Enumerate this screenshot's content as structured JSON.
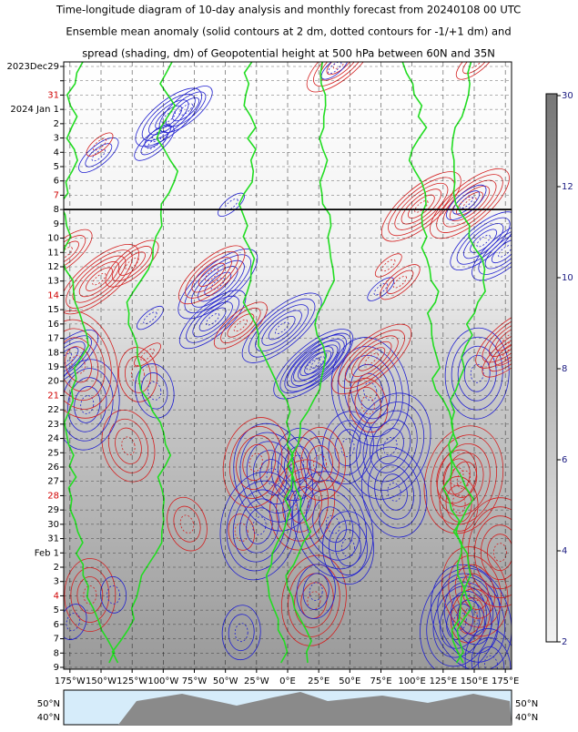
{
  "chart_data": {
    "type": "time-longitude",
    "title": [
      "Time-longitude diagram of 10-day analysis and monthly forecast from 20240108 00 UTC",
      "Ensemble mean anomaly (solid contours at 2 dm, dotted contours for -1/+1 dm) and",
      "spread (shading, dm) of Geopotential height at 500 hPa between 60N and 35N"
    ],
    "categories": [
      "2023Dec29",
      null,
      "31",
      "2024 Jan 1",
      "2",
      "3",
      "4",
      "5",
      "6",
      "7",
      "8",
      "9",
      "10",
      "11",
      "12",
      "13",
      "14",
      "15",
      "16",
      "17",
      "18",
      "19",
      "20",
      "21",
      "22",
      "23",
      "24",
      "25",
      "26",
      "27",
      "28",
      "29",
      "30",
      "31",
      "Feb 1",
      "2",
      "3",
      "4",
      "5",
      "6",
      "7",
      "8",
      "9"
    ],
    "highlight": [
      2,
      9,
      16,
      23,
      30,
      37
    ],
    "highlight_color": "#d00000",
    "divider_index": 10,
    "xlim": [
      -180,
      180
    ],
    "xticks": [
      {
        "value": -175,
        "label": "175°W"
      },
      {
        "value": -150,
        "label": "150°W"
      },
      {
        "value": -125,
        "label": "125°W"
      },
      {
        "value": -100,
        "label": "100°W"
      },
      {
        "value": -75,
        "label": "75°W"
      },
      {
        "value": -50,
        "label": "50°W"
      },
      {
        "value": -25,
        "label": "25°W"
      },
      {
        "value": 0,
        "label": "0°E"
      },
      {
        "value": 25,
        "label": "25°E"
      },
      {
        "value": 50,
        "label": "50°E"
      },
      {
        "value": 75,
        "label": "75°E"
      },
      {
        "value": 100,
        "label": "100°E"
      },
      {
        "value": 125,
        "label": "125°E"
      },
      {
        "value": 150,
        "label": "150°E"
      },
      {
        "value": 175,
        "label": "175°E"
      }
    ],
    "colorbar": {
      "levels": [
        2,
        4,
        6,
        8,
        10,
        12,
        30
      ],
      "color": "#1a1a80"
    },
    "map_labels": {
      "left": [
        "50°N",
        "40°N"
      ],
      "right": [
        "50°N",
        "40°N"
      ]
    }
  }
}
